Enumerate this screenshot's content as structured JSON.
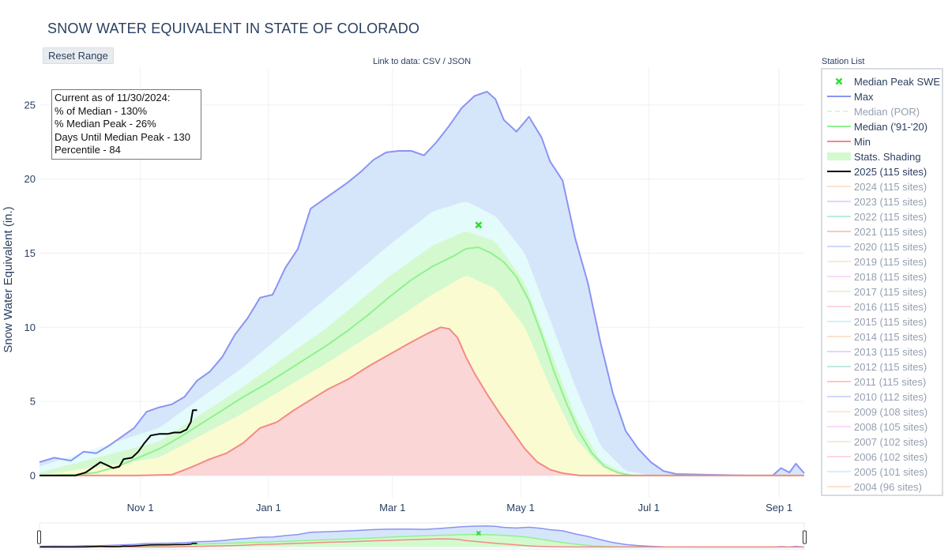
{
  "title": "SNOW WATER EQUIVALENT IN STATE OF COLORADO",
  "reset_button": "Reset Range",
  "data_link": "Link to data: CSV / JSON",
  "station_list_label": "Station List",
  "info_box": [
    "Current as of 11/30/2024:",
    "% of Median - 130%",
    "% Median Peak - 26%",
    "Days Until Median Peak - 130",
    "Percentile - 84"
  ],
  "colors": {
    "max": "#8b93f2",
    "median": "#8ff28f",
    "min": "#f48a86",
    "current": "#000000",
    "band_max": "#d6e6fa",
    "band_high": "#e3fbfb",
    "band_green": "#d4f9cf",
    "band_yellow": "#fbfbd2",
    "band_red": "#fbd6d6",
    "peak_marker": "#33dd33"
  },
  "legend": [
    {
      "label": "Median Peak SWE",
      "kind": "marker",
      "color": "#33dd33",
      "active": true
    },
    {
      "label": "Max",
      "kind": "line",
      "color": "#8b93f2",
      "active": true
    },
    {
      "label": "Median (POR)",
      "kind": "dash",
      "color": "#b8e6b8",
      "active": false
    },
    {
      "label": "Median ('91-'20)",
      "kind": "line",
      "color": "#8ff28f",
      "active": true
    },
    {
      "label": "Min",
      "kind": "line",
      "color": "#f48a86",
      "active": true
    },
    {
      "label": "Stats. Shading",
      "kind": "fill",
      "color": "#d4f9cf",
      "active": true
    },
    {
      "label": "2025 (115 sites)",
      "kind": "line",
      "color": "#000000",
      "active": true
    },
    {
      "label": "2024 (115 sites)",
      "kind": "line",
      "color": "#f8c89c",
      "active": false
    },
    {
      "label": "2023 (115 sites)",
      "kind": "line",
      "color": "#d2a6f4",
      "active": false
    },
    {
      "label": "2022 (115 sites)",
      "kind": "line",
      "color": "#7dd8b8",
      "active": false
    },
    {
      "label": "2021 (115 sites)",
      "kind": "line",
      "color": "#f2938e",
      "active": false
    },
    {
      "label": "2020 (115 sites)",
      "kind": "line",
      "color": "#a9b0f4",
      "active": false
    },
    {
      "label": "2019 (115 sites)",
      "kind": "line",
      "color": "#fbd79e",
      "active": false
    },
    {
      "label": "2018 (115 sites)",
      "kind": "line",
      "color": "#f7b8ee",
      "active": false
    },
    {
      "label": "2017 (115 sites)",
      "kind": "line",
      "color": "#cdeaa8",
      "active": false
    },
    {
      "label": "2016 (115 sites)",
      "kind": "line",
      "color": "#f6b0c6",
      "active": false
    },
    {
      "label": "2015 (115 sites)",
      "kind": "line",
      "color": "#9eeaf0",
      "active": false
    },
    {
      "label": "2014 (115 sites)",
      "kind": "line",
      "color": "#f8c89c",
      "active": false
    },
    {
      "label": "2013 (115 sites)",
      "kind": "line",
      "color": "#d2a6f4",
      "active": false
    },
    {
      "label": "2012 (115 sites)",
      "kind": "line",
      "color": "#7dd8b8",
      "active": false
    },
    {
      "label": "2011 (115 sites)",
      "kind": "line",
      "color": "#f2938e",
      "active": false
    },
    {
      "label": "2010 (112 sites)",
      "kind": "line",
      "color": "#a9b0f4",
      "active": false
    },
    {
      "label": "2009 (108 sites)",
      "kind": "line",
      "color": "#fbd79e",
      "active": false
    },
    {
      "label": "2008 (105 sites)",
      "kind": "line",
      "color": "#f7b8ee",
      "active": false
    },
    {
      "label": "2007 (102 sites)",
      "kind": "line",
      "color": "#cdeaa8",
      "active": false
    },
    {
      "label": "2006 (102 sites)",
      "kind": "line",
      "color": "#f6b0c6",
      "active": false
    },
    {
      "label": "2005 (101 sites)",
      "kind": "line",
      "color": "#9eeaf0",
      "active": false
    },
    {
      "label": "2004 (96 sites)",
      "kind": "line",
      "color": "#f8c89c",
      "active": false
    }
  ],
  "chart_data": {
    "type": "area",
    "title": "SNOW WATER EQUIVALENT IN STATE OF COLORADO",
    "xlabel": "",
    "ylabel": "Snow Water Equivalent (in.)",
    "ylim": [
      -1.5,
      27.5
    ],
    "yticks": [
      0,
      5,
      10,
      15,
      20,
      25
    ],
    "xlim_day": [
      -17,
      347
    ],
    "xticks": [
      {
        "day": 31,
        "label": "Nov  1"
      },
      {
        "day": 92,
        "label": "Jan  1"
      },
      {
        "day": 151,
        "label": "Mar  1"
      },
      {
        "day": 212,
        "label": "May  1"
      },
      {
        "day": 273,
        "label": "Jul  1"
      },
      {
        "day": 335,
        "label": "Sep  1"
      }
    ],
    "x_unit": "days since Oct 1",
    "grid": true,
    "legend_position": "right",
    "series": [
      {
        "name": "Max",
        "points": [
          [
            -17,
            0.9
          ],
          [
            -10,
            1.2
          ],
          [
            -2,
            1.0
          ],
          [
            4,
            1.6
          ],
          [
            10,
            1.5
          ],
          [
            16,
            2.0
          ],
          [
            22,
            2.6
          ],
          [
            28,
            3.2
          ],
          [
            34,
            4.3
          ],
          [
            40,
            4.6
          ],
          [
            46,
            4.8
          ],
          [
            52,
            5.3
          ],
          [
            58,
            6.4
          ],
          [
            64,
            7.0
          ],
          [
            70,
            8.0
          ],
          [
            76,
            9.5
          ],
          [
            82,
            10.6
          ],
          [
            88,
            12.0
          ],
          [
            94,
            12.2
          ],
          [
            100,
            14.0
          ],
          [
            106,
            15.3
          ],
          [
            112,
            18.0
          ],
          [
            118,
            18.6
          ],
          [
            124,
            19.2
          ],
          [
            130,
            19.8
          ],
          [
            136,
            20.5
          ],
          [
            142,
            21.3
          ],
          [
            148,
            21.8
          ],
          [
            154,
            21.9
          ],
          [
            160,
            21.9
          ],
          [
            166,
            21.6
          ],
          [
            172,
            22.5
          ],
          [
            178,
            23.6
          ],
          [
            184,
            24.8
          ],
          [
            190,
            25.6
          ],
          [
            196,
            25.9
          ],
          [
            200,
            25.4
          ],
          [
            204,
            24.0
          ],
          [
            210,
            23.2
          ],
          [
            216,
            24.2
          ],
          [
            222,
            22.8
          ],
          [
            226,
            21.2
          ],
          [
            232,
            19.9
          ],
          [
            238,
            16.0
          ],
          [
            244,
            13.0
          ],
          [
            250,
            9.0
          ],
          [
            256,
            5.5
          ],
          [
            262,
            3.0
          ],
          [
            268,
            1.8
          ],
          [
            274,
            0.9
          ],
          [
            280,
            0.3
          ],
          [
            286,
            0.1
          ],
          [
            320,
            0.0
          ],
          [
            332,
            0.0
          ],
          [
            336,
            0.5
          ],
          [
            340,
            0.2
          ],
          [
            343,
            0.8
          ],
          [
            347,
            0.15
          ]
        ]
      },
      {
        "name": "Median ('91-'20)",
        "points": [
          [
            -17,
            0.0
          ],
          [
            0,
            0.05
          ],
          [
            10,
            0.2
          ],
          [
            20,
            0.6
          ],
          [
            30,
            1.2
          ],
          [
            40,
            1.8
          ],
          [
            50,
            2.6
          ],
          [
            60,
            3.5
          ],
          [
            70,
            4.4
          ],
          [
            80,
            5.3
          ],
          [
            90,
            6.1
          ],
          [
            100,
            7.0
          ],
          [
            110,
            7.9
          ],
          [
            120,
            8.8
          ],
          [
            130,
            9.8
          ],
          [
            140,
            10.9
          ],
          [
            150,
            12.1
          ],
          [
            160,
            13.2
          ],
          [
            170,
            14.1
          ],
          [
            180,
            14.8
          ],
          [
            186,
            15.3
          ],
          [
            192,
            15.4
          ],
          [
            198,
            15.0
          ],
          [
            204,
            14.4
          ],
          [
            210,
            13.4
          ],
          [
            216,
            11.8
          ],
          [
            222,
            9.5
          ],
          [
            228,
            7.0
          ],
          [
            234,
            4.8
          ],
          [
            240,
            2.9
          ],
          [
            246,
            1.5
          ],
          [
            252,
            0.6
          ],
          [
            258,
            0.2
          ],
          [
            265,
            0.0
          ],
          [
            347,
            0.0
          ]
        ]
      },
      {
        "name": "Min",
        "points": [
          [
            -17,
            0.0
          ],
          [
            30,
            0.0
          ],
          [
            46,
            0.05
          ],
          [
            56,
            0.6
          ],
          [
            64,
            1.1
          ],
          [
            72,
            1.5
          ],
          [
            80,
            2.2
          ],
          [
            88,
            3.2
          ],
          [
            96,
            3.6
          ],
          [
            104,
            4.4
          ],
          [
            112,
            5.1
          ],
          [
            120,
            5.8
          ],
          [
            130,
            6.5
          ],
          [
            140,
            7.4
          ],
          [
            150,
            8.2
          ],
          [
            160,
            9.0
          ],
          [
            168,
            9.6
          ],
          [
            174,
            10.0
          ],
          [
            178,
            9.9
          ],
          [
            182,
            9.3
          ],
          [
            186,
            8.0
          ],
          [
            190,
            6.9
          ],
          [
            196,
            5.5
          ],
          [
            202,
            4.2
          ],
          [
            208,
            3.0
          ],
          [
            214,
            1.8
          ],
          [
            220,
            0.9
          ],
          [
            226,
            0.4
          ],
          [
            232,
            0.15
          ],
          [
            240,
            0.0
          ],
          [
            347,
            0.0
          ]
        ]
      },
      {
        "name": "2025 (115 sites)",
        "points": [
          [
            -17,
            0.0
          ],
          [
            0,
            0.0
          ],
          [
            5,
            0.2
          ],
          [
            8,
            0.5
          ],
          [
            12,
            0.9
          ],
          [
            15,
            0.7
          ],
          [
            18,
            0.5
          ],
          [
            21,
            0.6
          ],
          [
            23,
            1.1
          ],
          [
            27,
            1.2
          ],
          [
            30,
            1.6
          ],
          [
            33,
            2.2
          ],
          [
            36,
            2.7
          ],
          [
            40,
            2.8
          ],
          [
            44,
            2.8
          ],
          [
            47,
            2.9
          ],
          [
            50,
            2.9
          ],
          [
            53,
            3.1
          ],
          [
            55,
            3.6
          ],
          [
            56,
            4.4
          ],
          [
            58,
            4.4
          ]
        ]
      }
    ],
    "bands": [
      {
        "name": "max-high",
        "upper": "Max",
        "lower": [
          [
            -17,
            0.6
          ],
          [
            40,
            3.2
          ],
          [
            80,
            7.3
          ],
          [
            120,
            12.0
          ],
          [
            150,
            15.6
          ],
          [
            170,
            17.8
          ],
          [
            186,
            18.5
          ],
          [
            200,
            17.5
          ],
          [
            214,
            15.0
          ],
          [
            226,
            10.5
          ],
          [
            238,
            6.0
          ],
          [
            250,
            2.0
          ],
          [
            262,
            0.3
          ],
          [
            275,
            0.0
          ],
          [
            347,
            0.0
          ]
        ]
      },
      {
        "name": "high-green",
        "upper": [
          [
            -17,
            0.6
          ],
          [
            40,
            3.2
          ],
          [
            80,
            7.3
          ],
          [
            120,
            12.0
          ],
          [
            150,
            15.6
          ],
          [
            170,
            17.8
          ],
          [
            186,
            18.5
          ],
          [
            200,
            17.5
          ],
          [
            214,
            15.0
          ],
          [
            226,
            10.5
          ],
          [
            238,
            6.0
          ],
          [
            250,
            2.0
          ],
          [
            262,
            0.3
          ],
          [
            275,
            0.0
          ],
          [
            347,
            0.0
          ]
        ],
        "lower": [
          [
            -17,
            0.2
          ],
          [
            40,
            2.3
          ],
          [
            80,
            6.0
          ],
          [
            120,
            10.0
          ],
          [
            150,
            13.5
          ],
          [
            170,
            15.5
          ],
          [
            186,
            16.5
          ],
          [
            200,
            15.8
          ],
          [
            214,
            13.0
          ],
          [
            226,
            8.5
          ],
          [
            238,
            4.0
          ],
          [
            250,
            1.0
          ],
          [
            262,
            0.1
          ],
          [
            275,
            0.0
          ],
          [
            347,
            0.0
          ]
        ]
      },
      {
        "name": "green-yellow",
        "upper": [
          [
            -17,
            0.2
          ],
          [
            40,
            2.3
          ],
          [
            80,
            6.0
          ],
          [
            120,
            10.0
          ],
          [
            150,
            13.5
          ],
          [
            170,
            15.5
          ],
          [
            186,
            16.5
          ],
          [
            200,
            15.8
          ],
          [
            214,
            13.0
          ],
          [
            226,
            8.5
          ],
          [
            238,
            4.0
          ],
          [
            250,
            1.0
          ],
          [
            262,
            0.1
          ],
          [
            275,
            0.0
          ],
          [
            347,
            0.0
          ]
        ],
        "lower": [
          [
            -17,
            0.0
          ],
          [
            40,
            1.2
          ],
          [
            80,
            4.2
          ],
          [
            120,
            7.6
          ],
          [
            150,
            10.3
          ],
          [
            170,
            12.2
          ],
          [
            186,
            13.5
          ],
          [
            200,
            12.6
          ],
          [
            214,
            10.0
          ],
          [
            226,
            6.0
          ],
          [
            238,
            2.5
          ],
          [
            250,
            0.6
          ],
          [
            262,
            0.0
          ],
          [
            347,
            0.0
          ]
        ]
      },
      {
        "name": "yellow-red",
        "upper": [
          [
            -17,
            0.0
          ],
          [
            40,
            1.2
          ],
          [
            80,
            4.2
          ],
          [
            120,
            7.6
          ],
          [
            150,
            10.3
          ],
          [
            170,
            12.2
          ],
          [
            186,
            13.5
          ],
          [
            200,
            12.6
          ],
          [
            214,
            10.0
          ],
          [
            226,
            6.0
          ],
          [
            238,
            2.5
          ],
          [
            250,
            0.6
          ],
          [
            262,
            0.0
          ],
          [
            347,
            0.0
          ]
        ],
        "lower": "Min"
      }
    ],
    "peak_marker": {
      "name": "Median Peak SWE",
      "day": 192,
      "value": 16.9
    }
  }
}
